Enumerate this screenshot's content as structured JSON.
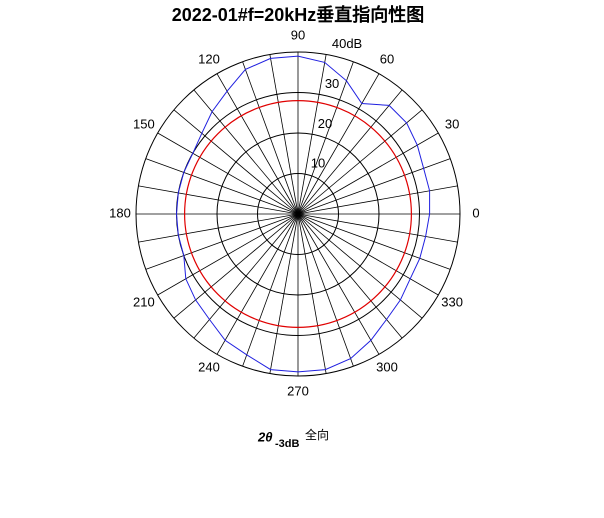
{
  "chart_data": {
    "type": "polar",
    "title": "2022-01#f=20kHz垂直指向性图",
    "theta": [
      0,
      10,
      20,
      30,
      40,
      50,
      60,
      70,
      80,
      90,
      100,
      110,
      120,
      130,
      140,
      150,
      160,
      170,
      180,
      190,
      200,
      210,
      220,
      230,
      240,
      250,
      260,
      270,
      280,
      290,
      300,
      310,
      320,
      330,
      340,
      350
    ],
    "series": [
      {
        "color": "#2020e0",
        "values": [
          32.5,
          33,
          33,
          34,
          35,
          35,
          31.5,
          35,
          38,
          39,
          39,
          38,
          35,
          33,
          31,
          30,
          30,
          30,
          30,
          30,
          30,
          32,
          33,
          34,
          36,
          37,
          39,
          39,
          39,
          38,
          36,
          34,
          33,
          32,
          32,
          32
        ]
      }
    ],
    "rlim": [
      0,
      40
    ],
    "rticks": [
      10,
      20,
      30,
      {
        "value": 40,
        "label": "40dB"
      }
    ],
    "thetaticks": [
      0,
      30,
      60,
      90,
      120,
      150,
      180,
      210,
      240,
      270,
      300,
      330
    ],
    "spoke_step": 10,
    "reference_r": 28,
    "reference_color": "#e00000",
    "annotation": {
      "symbol": "2θ",
      "subscript": "-3dB",
      "text": "全向"
    }
  }
}
